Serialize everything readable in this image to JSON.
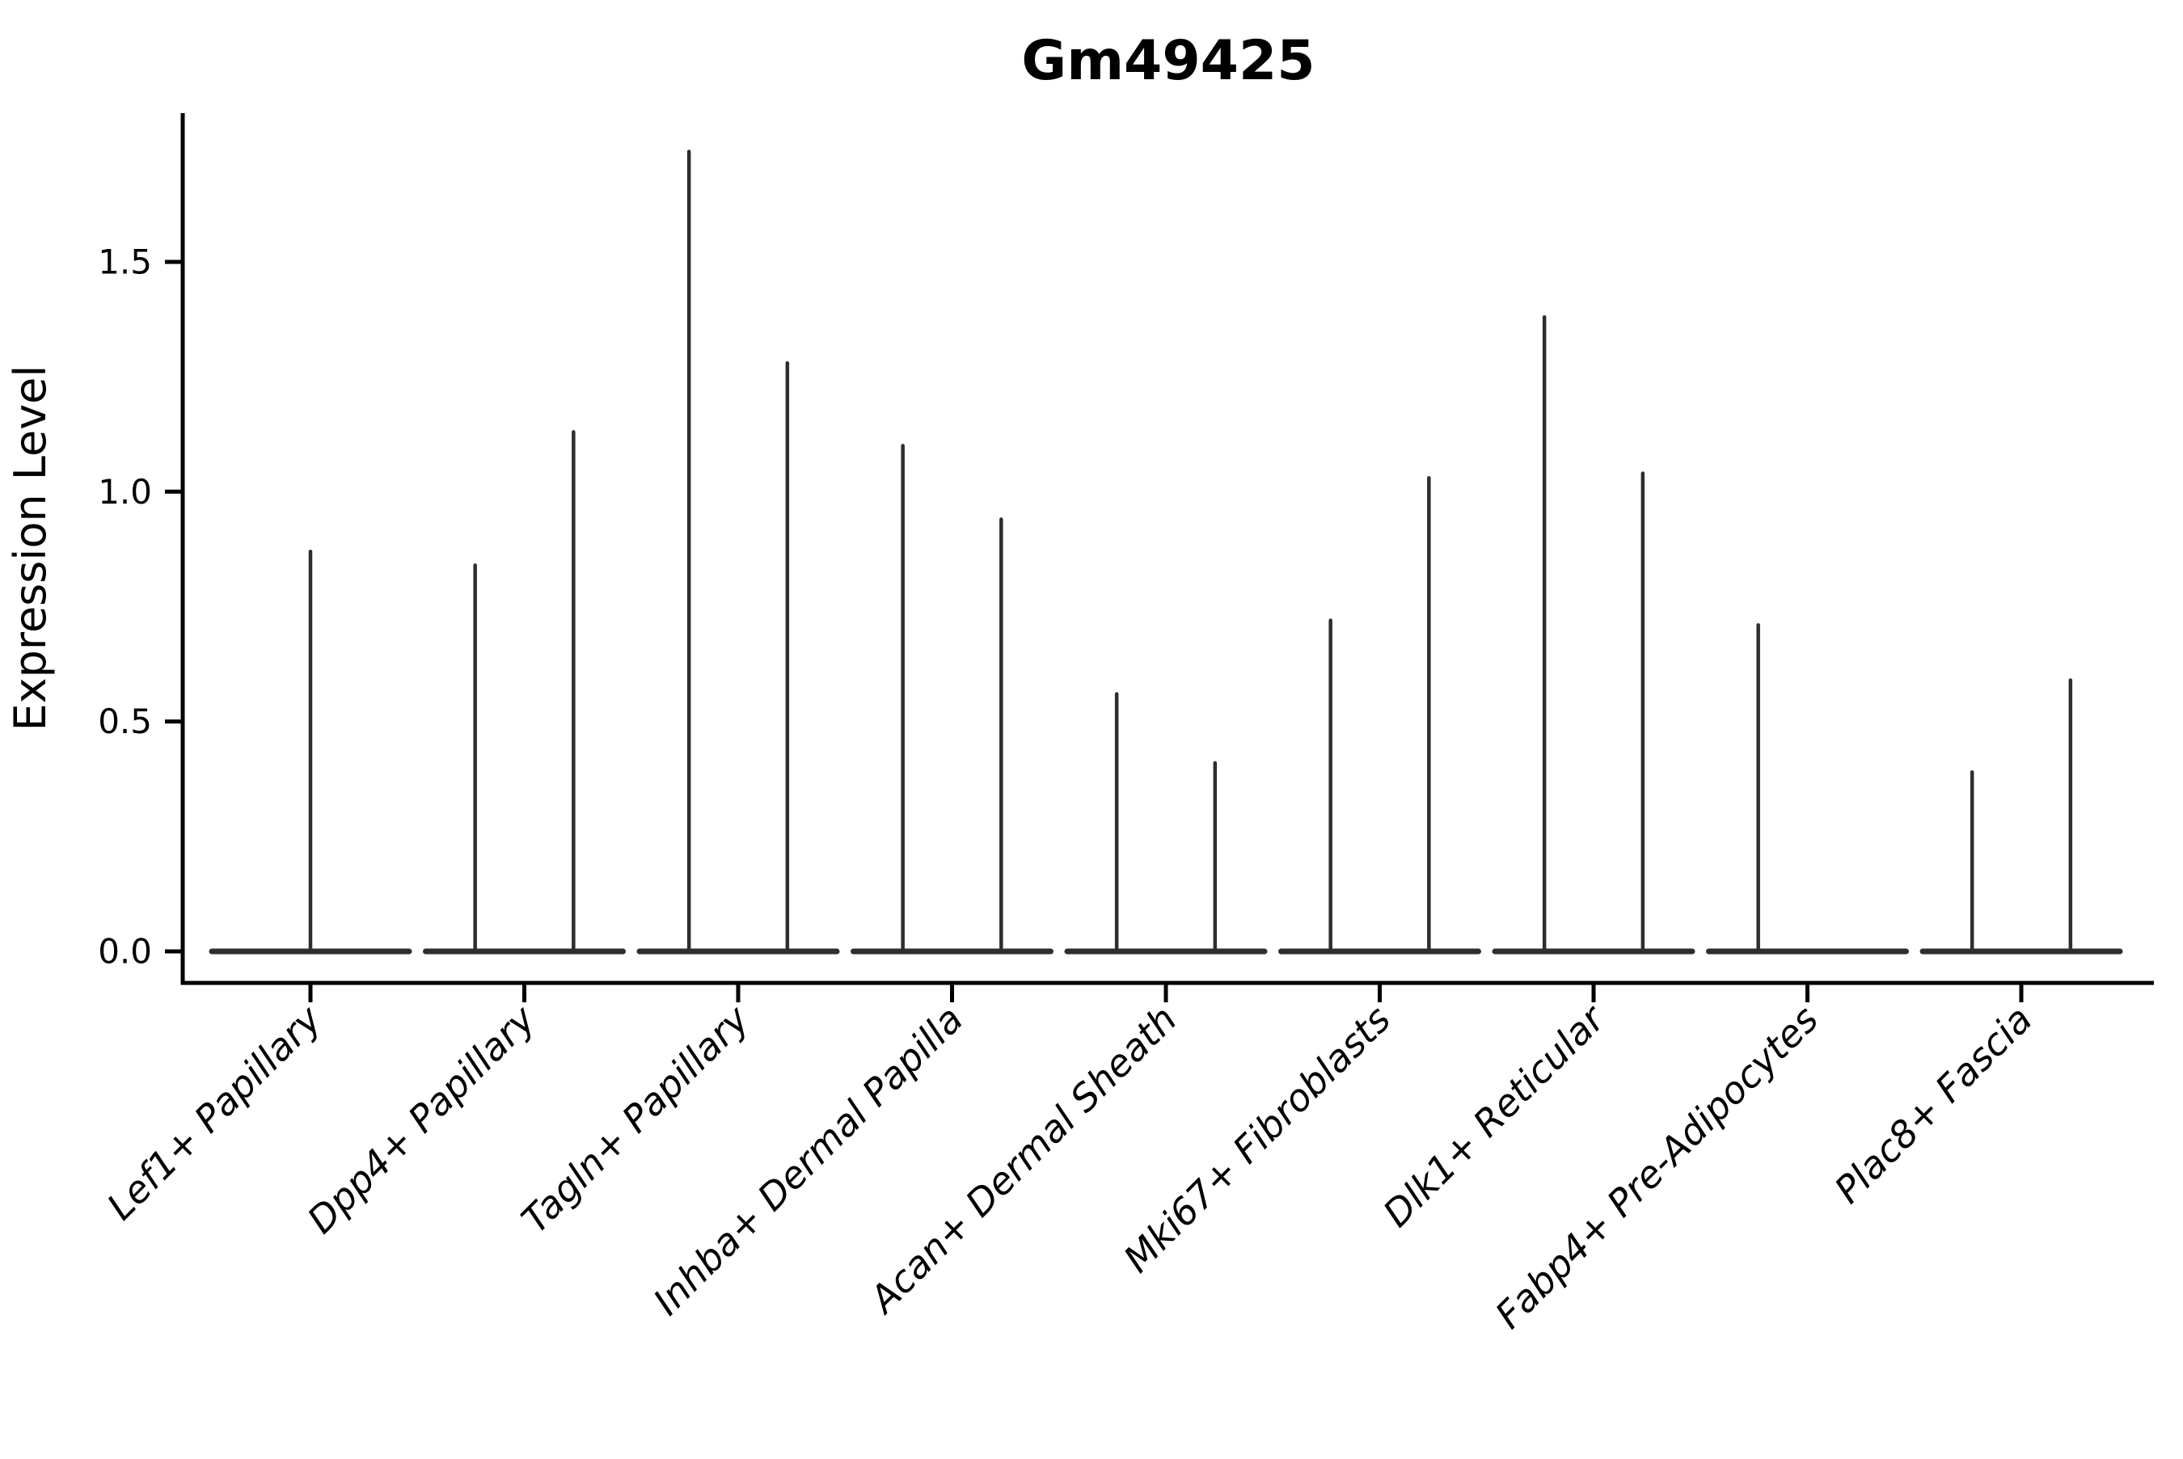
{
  "figure": {
    "background_color": "#ffffff",
    "text_color": "#000000"
  },
  "chart_data": {
    "type": "violin",
    "title": "Gm49425",
    "ylabel": "Expression Level",
    "xlabel": "",
    "grid": false,
    "legend": null,
    "axis_color": "#000000",
    "violin_color": "#2e2e2e",
    "yticks": [
      0.0,
      0.5,
      1.0,
      1.5
    ],
    "ylim": [
      -0.07,
      1.82
    ],
    "tick_label_format": "one_decimal",
    "xtick_rotation_deg": 45,
    "description": "Each category shows razor-thin violins: a flat base line at expression 0 spanning the category width, and one or two vertical density spikes whose tops mark the maximum expression level. 'offset' is the spike position in category-width units relative to the category center; 'max' is the spike top in expression units.",
    "categories": [
      {
        "label": "Lef1+ Papillary",
        "violins": [
          {
            "offset": 0,
            "max": 0.87
          }
        ]
      },
      {
        "label": "Dpp4+ Papillary",
        "violins": [
          {
            "offset": -0.23,
            "max": 0.84
          },
          {
            "offset": 0.23,
            "max": 1.13
          }
        ]
      },
      {
        "label": "Tagln+ Papillary",
        "violins": [
          {
            "offset": -0.23,
            "max": 1.74
          },
          {
            "offset": 0.23,
            "max": 1.28
          }
        ]
      },
      {
        "label": "Inhba+ Dermal Papilla",
        "violins": [
          {
            "offset": -0.23,
            "max": 1.1
          },
          {
            "offset": 0.23,
            "max": 0.94
          }
        ]
      },
      {
        "label": "Acan+ Dermal Sheath",
        "violins": [
          {
            "offset": -0.23,
            "max": 0.56
          },
          {
            "offset": 0.23,
            "max": 0.41
          }
        ]
      },
      {
        "label": "Mki67+ Fibroblasts",
        "violins": [
          {
            "offset": -0.23,
            "max": 0.72
          },
          {
            "offset": 0.23,
            "max": 1.03
          }
        ]
      },
      {
        "label": "Dlk1+ Reticular",
        "violins": [
          {
            "offset": -0.23,
            "max": 1.38
          },
          {
            "offset": 0.23,
            "max": 1.04
          }
        ]
      },
      {
        "label": "Fabp4+ Pre-Adipocytes",
        "violins": [
          {
            "offset": -0.23,
            "max": 0.71
          }
        ]
      },
      {
        "label": "Plac8+ Fascia",
        "violins": [
          {
            "offset": -0.23,
            "max": 0.39
          },
          {
            "offset": 0.23,
            "max": 0.59
          }
        ]
      }
    ]
  }
}
